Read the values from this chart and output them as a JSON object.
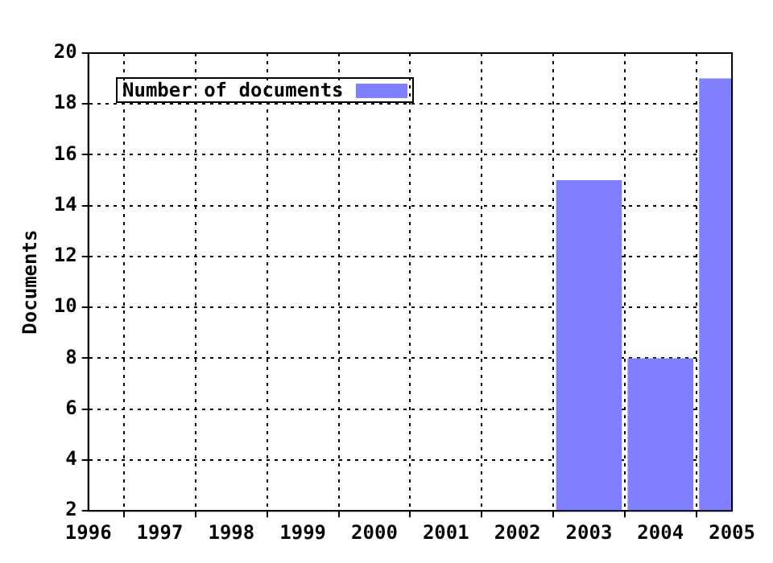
{
  "chart_data": {
    "type": "bar",
    "ylabel": "Documents",
    "x": [
      2003,
      2004,
      2005
    ],
    "series": [
      {
        "name": "Number of documents",
        "color": "#8080ff",
        "values": [
          15,
          8,
          19
        ]
      }
    ],
    "xlim": [
      1996,
      2005
    ],
    "xticks": [
      1996,
      1997,
      1998,
      1999,
      2000,
      2001,
      2002,
      2003,
      2004,
      2005
    ],
    "ylim": [
      2,
      20
    ],
    "yticks": [
      2,
      4,
      6,
      8,
      10,
      12,
      14,
      16,
      18,
      20
    ],
    "grid": true,
    "legend": "top left"
  }
}
